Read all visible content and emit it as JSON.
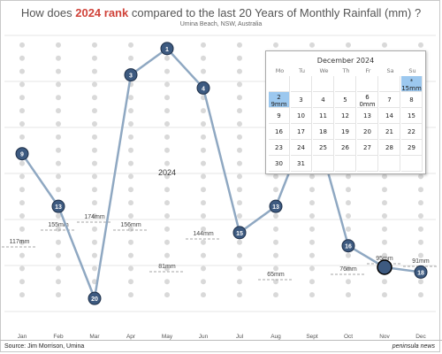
{
  "title": {
    "before": "How does ",
    "highlight": "2024 rank",
    "after": " compared to the last 20 Years of Monthly Rainfall (mm) ?"
  },
  "subtitle": "Umina Beach, NSW, Australia",
  "source": "Source: Jim Morrison, Umina",
  "brand": "peninsula news",
  "colors": {
    "line": "#8fa8c2",
    "marker": "#3d5a80",
    "marker_edge": "#1e2f48",
    "dots": "#d9d9d9",
    "highlight": "#d0433a",
    "calendar_highlight": "#9cc8ef"
  },
  "chart_data": {
    "type": "line",
    "title": "How does 2024 rank compared to the last 20 Years of Monthly Rainfall (mm) ?",
    "subtitle": "Umina Beach, NSW, Australia",
    "categories": [
      "Jan",
      "Feb",
      "Mar",
      "Apr",
      "May",
      "Jun",
      "Jul",
      "Aug",
      "Sept",
      "Oct",
      "Nov",
      "Dec"
    ],
    "ylim": [
      21,
      1
    ],
    "grid": true,
    "series": [
      {
        "name": "2024",
        "label": "2024",
        "ranks": [
          9,
          13,
          20,
          3,
          1,
          4,
          15,
          13,
          6,
          16,
          null,
          18
        ],
        "last_point_note": "Nov 2024 rank not shown"
      }
    ],
    "averages": [
      {
        "month": "Jan",
        "label": "117mm"
      },
      {
        "month": "Feb",
        "label": "155mm"
      },
      {
        "month": "Mar",
        "label": "174mm"
      },
      {
        "month": "Apr",
        "label": "156mm"
      },
      {
        "month": "May",
        "label": "81mm"
      },
      {
        "month": "Jun",
        "label": "144mm"
      },
      {
        "month": "Aug",
        "label": "65mm"
      },
      {
        "month": "Oct",
        "label": "76mm"
      },
      {
        "month": "Nov",
        "label": "95mm"
      },
      {
        "month": "Dec",
        "label": "91mm"
      }
    ],
    "dots_per_month": 20
  },
  "calendar": {
    "title": "December 2024",
    "days_of_week": [
      "Mo",
      "Tu",
      "We",
      "Th",
      "Fr",
      "Sa",
      "Su"
    ],
    "weeks": [
      [
        {
          "d": ""
        },
        {
          "d": ""
        },
        {
          "d": ""
        },
        {
          "d": ""
        },
        {
          "d": ""
        },
        {
          "d": ""
        },
        {
          "d": "*",
          "v": "15mm",
          "hl": true
        }
      ],
      [
        {
          "d": "2",
          "v": "9mm",
          "hl": true
        },
        {
          "d": "3"
        },
        {
          "d": "4"
        },
        {
          "d": "5"
        },
        {
          "d": "6",
          "v": "0mm"
        },
        {
          "d": "7"
        },
        {
          "d": "8"
        }
      ],
      [
        {
          "d": "9"
        },
        {
          "d": "10"
        },
        {
          "d": "11"
        },
        {
          "d": "12"
        },
        {
          "d": "13"
        },
        {
          "d": "14"
        },
        {
          "d": "15"
        }
      ],
      [
        {
          "d": "16"
        },
        {
          "d": "17"
        },
        {
          "d": "18"
        },
        {
          "d": "19"
        },
        {
          "d": "20"
        },
        {
          "d": "21"
        },
        {
          "d": "22"
        }
      ],
      [
        {
          "d": "23"
        },
        {
          "d": "24"
        },
        {
          "d": "25"
        },
        {
          "d": "26"
        },
        {
          "d": "27"
        },
        {
          "d": "28"
        },
        {
          "d": "29"
        }
      ],
      [
        {
          "d": "30"
        },
        {
          "d": "31"
        },
        {
          "d": ""
        },
        {
          "d": ""
        },
        {
          "d": ""
        },
        {
          "d": ""
        },
        {
          "d": ""
        }
      ]
    ]
  }
}
